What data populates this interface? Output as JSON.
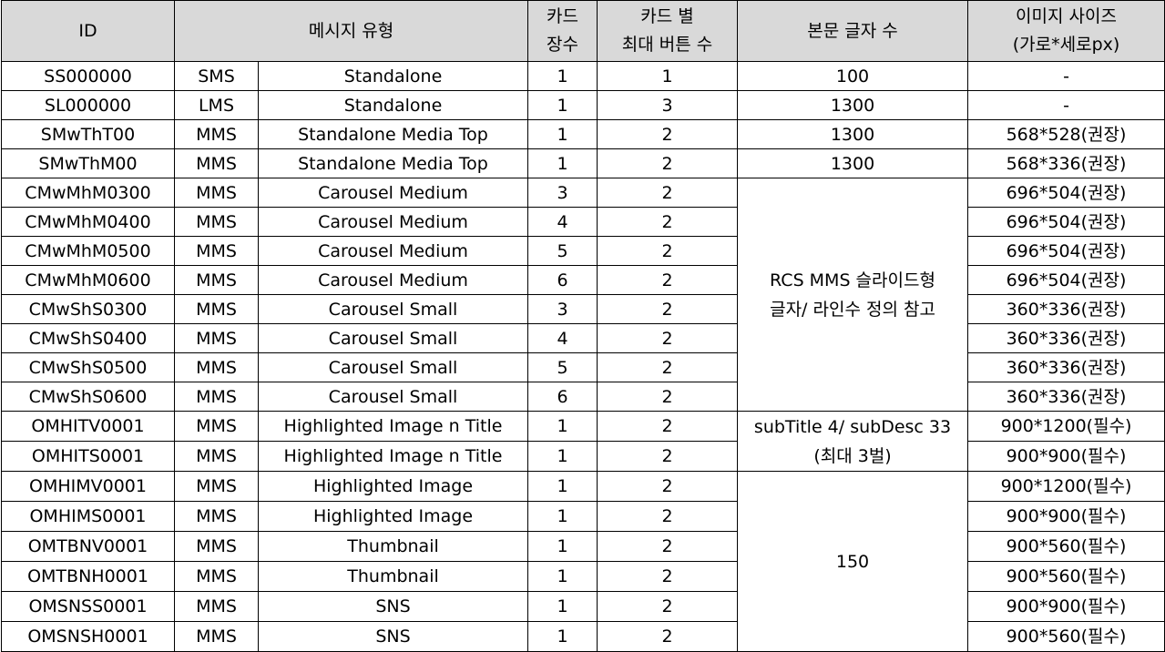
{
  "headers": {
    "id": "ID",
    "type": "메시지 유형",
    "cards_line1": "카드",
    "cards_line2": "장수",
    "buttons_line1": "카드 별",
    "buttons_line2": "최대 버튼 수",
    "body_chars": "본문 글자 수",
    "image_line1": "이미지 사이즈",
    "image_line2": "(가로*세로px)"
  },
  "rows": [
    {
      "id": "SS000000",
      "kind": "SMS",
      "name": "Standalone",
      "cards": "1",
      "buttons": "1",
      "body": "100",
      "image": "-"
    },
    {
      "id": "SL000000",
      "kind": "LMS",
      "name": "Standalone",
      "cards": "1",
      "buttons": "3",
      "body": "1300",
      "image": "-"
    },
    {
      "id": "SMwThT00",
      "kind": "MMS",
      "name": "Standalone Media Top",
      "cards": "1",
      "buttons": "2",
      "body": "1300",
      "image": "568*528(권장)"
    },
    {
      "id": "SMwThM00",
      "kind": "MMS",
      "name": "Standalone Media Top",
      "cards": "1",
      "buttons": "2",
      "body": "1300",
      "image": "568*336(권장)"
    },
    {
      "id": "CMwMhM0300",
      "kind": "MMS",
      "name": "Carousel Medium",
      "cards": "3",
      "buttons": "2",
      "image": "696*504(권장)"
    },
    {
      "id": "CMwMhM0400",
      "kind": "MMS",
      "name": "Carousel Medium",
      "cards": "4",
      "buttons": "2",
      "image": "696*504(권장)"
    },
    {
      "id": "CMwMhM0500",
      "kind": "MMS",
      "name": "Carousel Medium",
      "cards": "5",
      "buttons": "2",
      "image": "696*504(권장)"
    },
    {
      "id": "CMwMhM0600",
      "kind": "MMS",
      "name": "Carousel Medium",
      "cards": "6",
      "buttons": "2",
      "image": "696*504(권장)"
    },
    {
      "id": "CMwShS0300",
      "kind": "MMS",
      "name": "Carousel Small",
      "cards": "3",
      "buttons": "2",
      "image": "360*336(권장)"
    },
    {
      "id": "CMwShS0400",
      "kind": "MMS",
      "name": "Carousel Small",
      "cards": "4",
      "buttons": "2",
      "image": "360*336(권장)"
    },
    {
      "id": "CMwShS0500",
      "kind": "MMS",
      "name": "Carousel Small",
      "cards": "5",
      "buttons": "2",
      "image": "360*336(권장)"
    },
    {
      "id": "CMwShS0600",
      "kind": "MMS",
      "name": "Carousel Small",
      "cards": "6",
      "buttons": "2",
      "image": "360*336(권장)"
    },
    {
      "id": "OMHITV0001",
      "kind": "MMS",
      "name": "Highlighted Image n Title",
      "cards": "1",
      "buttons": "2",
      "image": "900*1200(필수)"
    },
    {
      "id": "OMHITS0001",
      "kind": "MMS",
      "name": "Highlighted Image n Title",
      "cards": "1",
      "buttons": "2",
      "image": "900*900(필수)"
    },
    {
      "id": "OMHIMV0001",
      "kind": "MMS",
      "name": "Highlighted Image",
      "cards": "1",
      "buttons": "2",
      "image": "900*1200(필수)"
    },
    {
      "id": "OMHIMS0001",
      "kind": "MMS",
      "name": "Highlighted Image",
      "cards": "1",
      "buttons": "2",
      "image": "900*900(필수)"
    },
    {
      "id": "OMTBNV0001",
      "kind": "MMS",
      "name": "Thumbnail",
      "cards": "1",
      "buttons": "2",
      "image": "900*560(필수)"
    },
    {
      "id": "OMTBNH0001",
      "kind": "MMS",
      "name": "Thumbnail",
      "cards": "1",
      "buttons": "2",
      "image": "900*560(필수)"
    },
    {
      "id": "OMSNSS0001",
      "kind": "MMS",
      "name": "SNS",
      "cards": "1",
      "buttons": "2",
      "image": "900*900(필수)"
    },
    {
      "id": "OMSNSH0001",
      "kind": "MMS",
      "name": "SNS",
      "cards": "1",
      "buttons": "2",
      "image": "900*560(필수)"
    }
  ],
  "merged": {
    "carousel_line1": "RCS MMS 슬라이드형",
    "carousel_line2": "글자/ 라인수 정의 참고",
    "highlighted_title_line1": "subTitle 4/ subDesc 33",
    "highlighted_title_line2": "(최대 3벌)",
    "others": "150"
  },
  "colors": {
    "header_bg": "#d9d9d9",
    "border": "#000000"
  }
}
